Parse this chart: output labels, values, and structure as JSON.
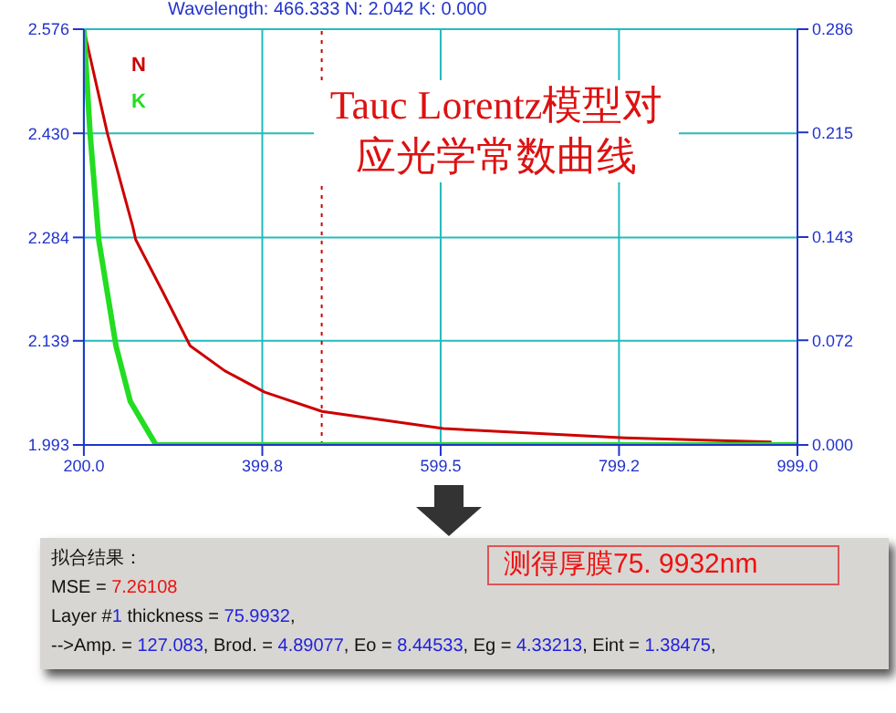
{
  "chart_data": [
    {
      "type": "line",
      "title": "Tauc Lorentz模型对应光学常数曲线",
      "subtitle": "Wavelength: 466.333 N: 2.042 K: 0.000",
      "series": [
        {
          "name": "N",
          "color": "#cc0000",
          "axis": "y",
          "x": [
            200,
            226.3,
            255,
            258,
            287,
            319,
            357.7,
            402.5,
            466.7,
            602.6,
            806,
            970
          ],
          "values": [
            2.576,
            2.43,
            2.298,
            2.281,
            2.211,
            2.132,
            2.097,
            2.067,
            2.04,
            2.016,
            2.003,
            1.997
          ]
        },
        {
          "name": "K",
          "color": "#22dd22",
          "axis": "y2",
          "x": [
            200,
            207,
            216.7,
            236,
            252,
            280.8,
            999
          ],
          "values": [
            0.286,
            0.214,
            0.141,
            0.068,
            0.03,
            0,
            0
          ]
        }
      ],
      "xlim": [
        200,
        999
      ],
      "xticks": [
        {
          "value": 200,
          "label": "200.0"
        },
        {
          "value": 399.8,
          "label": "399.8"
        },
        {
          "value": 599.5,
          "label": "599.5"
        },
        {
          "value": 799.2,
          "label": "799.2"
        },
        {
          "value": 999,
          "label": "999.0"
        }
      ],
      "ylim": [
        1.993,
        2.576
      ],
      "yticks": [
        1.993,
        2.139,
        2.284,
        {
          "value": 2.43,
          "label": "2.430"
        },
        2.576
      ],
      "y2lim": [
        0,
        0.286
      ],
      "y2ticks": [
        {
          "value": 0,
          "label": "0.000"
        },
        0.072,
        0.143,
        0.215,
        0.286
      ],
      "ref_lines": [
        {
          "axis": "x",
          "value": 466.333,
          "color": "#cc0000",
          "line_style": "dotted"
        }
      ],
      "grid": true,
      "legend": "top left",
      "marker": "none",
      "line_style": "solid"
    },
    {
      "type": "other",
      "annotations": [
        "拟合结果：",
        "MSE = 7.26108",
        "Layer #1 thickness = 75.9932,",
        "-->Amp. = 127.083, Brod. = 4.89077, Eo = 8.44533, Eg = 4.33213, Eint = 1.38475,",
        "测得厚膜75. 9932nm"
      ]
    }
  ]
}
